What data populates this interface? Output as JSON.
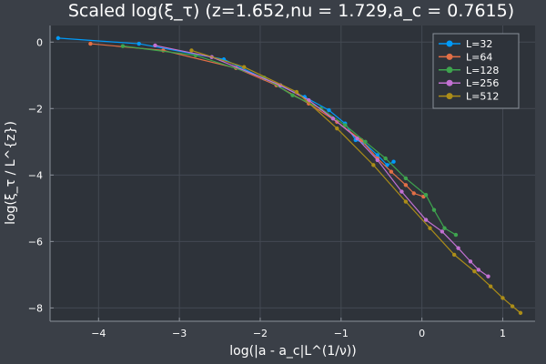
{
  "chart_data": {
    "type": "line",
    "title": "Scaled log(ξ_τ) (z=1.652,nu = 1.729,a_c = 0.7615)",
    "xlabel": "log(|a - a_c|L^(1/ν))",
    "ylabel": "log(ξ_τ / L^{z})",
    "xlim": [
      -4.6,
      1.4
    ],
    "ylim": [
      -8.4,
      0.5
    ],
    "xticks": [
      -4,
      -3,
      -2,
      -1,
      0,
      1
    ],
    "yticks": [
      0,
      -2,
      -4,
      -6,
      -8
    ],
    "xtick_labels": [
      "−4",
      "−3",
      "−2",
      "−1",
      "0",
      "1"
    ],
    "ytick_labels": [
      "0",
      "−2",
      "−4",
      "−6",
      "−8"
    ],
    "grid": true,
    "legend_position": "top-right",
    "colors": {
      "background": "#3a3f47",
      "plot_background": "#2e333a",
      "grid": "#444a53",
      "frame": "#8a9099",
      "text": "#ffffff"
    },
    "series": [
      {
        "name": "L=32",
        "color": "#009af9",
        "x": [
          -4.5,
          -3.5,
          -2.45,
          -1.95,
          -1.45,
          -1.15,
          -0.95,
          -0.82,
          -0.72,
          -0.55,
          -0.43,
          -0.35
        ],
        "y": [
          0.12,
          -0.05,
          -0.52,
          -1.1,
          -1.65,
          -2.05,
          -2.45,
          -2.95,
          -3.02,
          -3.4,
          -3.7,
          -3.6
        ]
      },
      {
        "name": "L=64",
        "color": "#e26f46",
        "x": [
          -4.1,
          -3.2,
          -2.3,
          -1.8,
          -1.4,
          -1.05,
          -0.75,
          -0.55,
          -0.38,
          -0.2,
          -0.1,
          0.02
        ],
        "y": [
          -0.05,
          -0.25,
          -0.78,
          -1.3,
          -1.85,
          -2.4,
          -2.95,
          -3.5,
          -3.9,
          -4.3,
          -4.55,
          -4.65
        ]
      },
      {
        "name": "L=128",
        "color": "#3ea44e",
        "x": [
          -3.7,
          -2.8,
          -1.95,
          -1.6,
          -1.25,
          -0.95,
          -0.7,
          -0.45,
          -0.2,
          0.05,
          0.15,
          0.28,
          0.42
        ],
        "y": [
          -0.12,
          -0.4,
          -1.07,
          -1.6,
          -2.0,
          -2.5,
          -3.0,
          -3.5,
          -4.1,
          -4.6,
          -5.05,
          -5.6,
          -5.8
        ]
      },
      {
        "name": "L=256",
        "color": "#c271d2",
        "x": [
          -3.3,
          -2.6,
          -1.75,
          -1.4,
          -1.1,
          -0.8,
          -0.55,
          -0.25,
          0.05,
          0.25,
          0.45,
          0.6,
          0.7,
          0.82
        ],
        "y": [
          -0.1,
          -0.45,
          -1.3,
          -1.75,
          -2.3,
          -2.9,
          -3.55,
          -4.5,
          -5.35,
          -5.7,
          -6.2,
          -6.6,
          -6.85,
          -7.05
        ]
      },
      {
        "name": "L=512",
        "color": "#ac8d18",
        "x": [
          -2.85,
          -2.2,
          -1.55,
          -1.05,
          -0.6,
          -0.2,
          0.1,
          0.4,
          0.65,
          0.85,
          1.0,
          1.12,
          1.22
        ],
        "y": [
          -0.25,
          -0.75,
          -1.5,
          -2.6,
          -3.7,
          -4.8,
          -5.6,
          -6.4,
          -6.9,
          -7.35,
          -7.7,
          -7.95,
          -8.15
        ]
      }
    ]
  }
}
